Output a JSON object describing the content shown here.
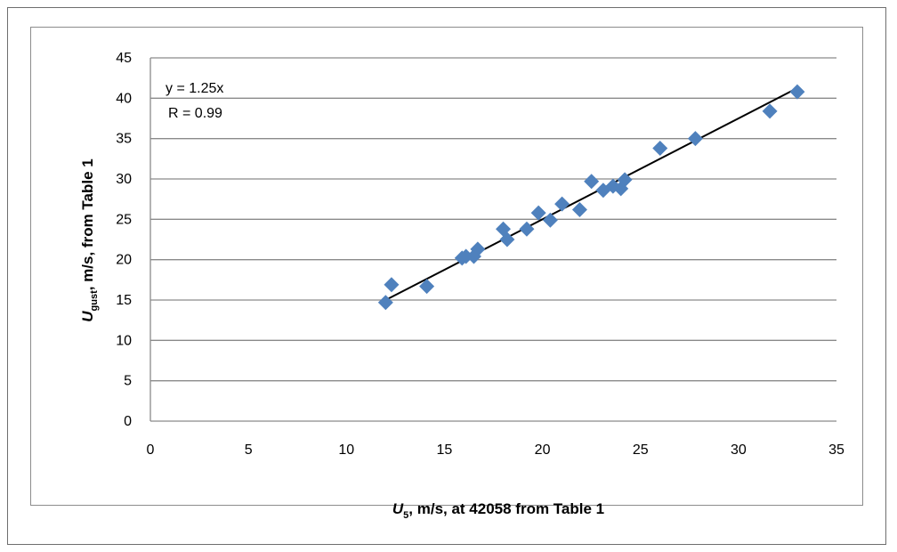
{
  "chart_data": {
    "type": "scatter",
    "title": "",
    "xlabel": {
      "symbol": "U",
      "subscript": "5",
      "text": ", m/s, at 42058  from Table 1"
    },
    "ylabel": {
      "symbol": "U",
      "subscript": "gust",
      "text": ", m/s, from Table 1"
    },
    "xlim": [
      0,
      35
    ],
    "ylim": [
      0,
      45
    ],
    "xticks": [
      0,
      5,
      10,
      15,
      20,
      25,
      30,
      35
    ],
    "yticks": [
      0,
      5,
      10,
      15,
      20,
      25,
      30,
      35,
      40,
      45
    ],
    "grid": {
      "horizontal": true,
      "vertical": false
    },
    "marker": {
      "shape": "diamond",
      "color": "#4f81bd"
    },
    "trendline": {
      "type": "linear",
      "slope": 1.25,
      "x_range": [
        12,
        33
      ],
      "color": "#000000",
      "equation": "y = 1.25x",
      "r_label": "R = 0.99"
    },
    "series": [
      {
        "points": [
          [
            12.0,
            14.7
          ],
          [
            12.3,
            16.9
          ],
          [
            14.1,
            16.7
          ],
          [
            15.9,
            20.2
          ],
          [
            16.1,
            20.4
          ],
          [
            16.5,
            20.4
          ],
          [
            16.7,
            21.3
          ],
          [
            18.0,
            23.8
          ],
          [
            18.2,
            22.5
          ],
          [
            19.2,
            23.8
          ],
          [
            19.8,
            25.8
          ],
          [
            20.4,
            24.9
          ],
          [
            21.0,
            26.9
          ],
          [
            21.9,
            26.2
          ],
          [
            22.5,
            29.7
          ],
          [
            23.1,
            28.6
          ],
          [
            23.6,
            29.1
          ],
          [
            24.0,
            28.8
          ],
          [
            24.2,
            29.9
          ],
          [
            26.0,
            33.8
          ],
          [
            27.8,
            35.0
          ],
          [
            31.6,
            38.4
          ],
          [
            33.0,
            40.8
          ]
        ]
      }
    ]
  }
}
